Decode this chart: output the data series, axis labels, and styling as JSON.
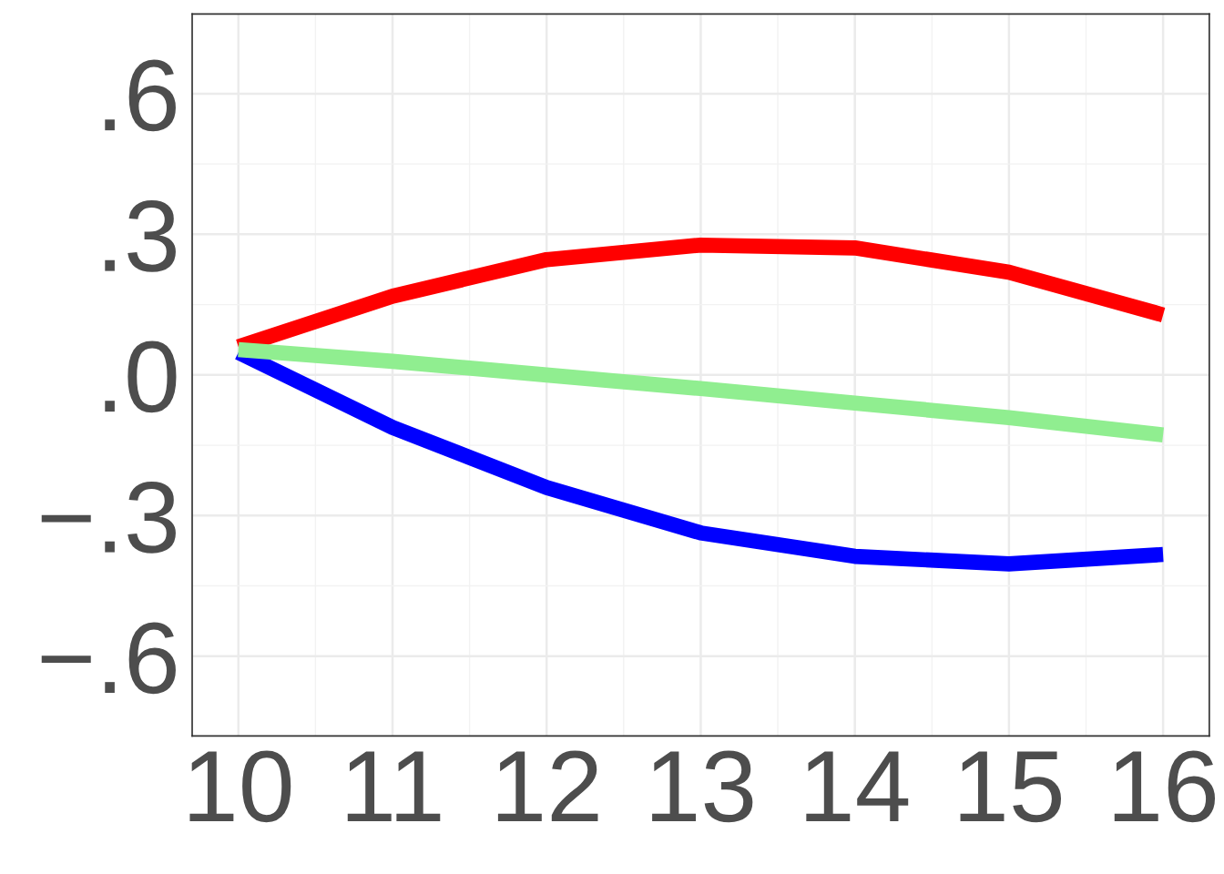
{
  "chart_data": {
    "type": "line",
    "x": [
      10,
      11,
      12,
      13,
      14,
      15,
      16
    ],
    "series": [
      {
        "color": "#ff0000",
        "values": [
          0.06,
          0.168,
          0.246,
          0.277,
          0.271,
          0.219,
          0.128
        ]
      },
      {
        "color": "#0000ff",
        "values": [
          0.048,
          -0.112,
          -0.24,
          -0.337,
          -0.387,
          -0.403,
          -0.383
        ]
      },
      {
        "color": "#90ee90",
        "values": [
          0.054,
          0.029,
          0.0,
          -0.029,
          -0.06,
          -0.091,
          -0.128
        ]
      }
    ],
    "xlim": [
      9.7,
      16.3
    ],
    "xticks": [
      10,
      11,
      12,
      13,
      14,
      15,
      16
    ],
    "ylim": [
      -0.77,
      0.77
    ],
    "yticks": [
      {
        "value": -0.6,
        "label": "−.6"
      },
      {
        "value": -0.3,
        "label": "−.3"
      },
      {
        "value": 0,
        "label": ".0"
      },
      {
        "value": 0.3,
        "label": ".3"
      },
      {
        "value": 0.6,
        "label": ".6"
      }
    ],
    "grid": true,
    "legend": false,
    "marker": "none",
    "line_style": "solid"
  }
}
